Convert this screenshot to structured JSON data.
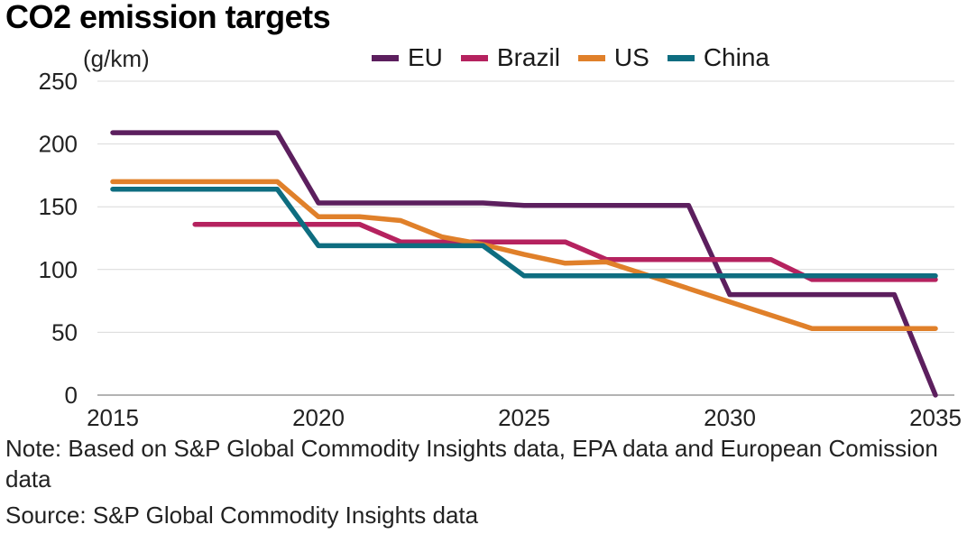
{
  "title": "CO2 emission targets",
  "unit_label": "(g/km)",
  "note": "Note: Based on S&P Global Commodity Insights data, EPA data and European Comission data",
  "source": "Source: S&P Global Commodity Insights data",
  "chart_data": {
    "type": "line",
    "title": "CO2 emission targets",
    "ylabel": "(g/km)",
    "xlabel": "",
    "xlim": [
      2015,
      2035
    ],
    "ylim": [
      0,
      250
    ],
    "x_ticks": [
      2015,
      2020,
      2025,
      2030,
      2035
    ],
    "y_ticks": [
      0,
      50,
      100,
      150,
      200,
      250
    ],
    "grid": "horizontal",
    "legend_position": "top",
    "series": [
      {
        "name": "EU",
        "color": "#5c1f5e",
        "points": [
          [
            2015,
            209
          ],
          [
            2019,
            209
          ],
          [
            2020,
            153
          ],
          [
            2024,
            153
          ],
          [
            2025,
            151
          ],
          [
            2029,
            151
          ],
          [
            2030,
            80
          ],
          [
            2034,
            80
          ],
          [
            2035,
            0
          ]
        ]
      },
      {
        "name": "Brazil",
        "color": "#b5225f",
        "points": [
          [
            2017,
            136
          ],
          [
            2021,
            136
          ],
          [
            2022,
            122
          ],
          [
            2026,
            122
          ],
          [
            2027,
            108
          ],
          [
            2031,
            108
          ],
          [
            2032,
            92
          ],
          [
            2035,
            92
          ]
        ]
      },
      {
        "name": "US",
        "color": "#e0802a",
        "points": [
          [
            2015,
            170
          ],
          [
            2019,
            170
          ],
          [
            2020,
            142
          ],
          [
            2021,
            142
          ],
          [
            2022,
            139
          ],
          [
            2023,
            126
          ],
          [
            2024,
            120
          ],
          [
            2025,
            112
          ],
          [
            2026,
            105
          ],
          [
            2027,
            106
          ],
          [
            2032,
            53
          ],
          [
            2035,
            53
          ]
        ]
      },
      {
        "name": "China",
        "color": "#0e6d80",
        "points": [
          [
            2015,
            164
          ],
          [
            2019,
            164
          ],
          [
            2020,
            119
          ],
          [
            2024,
            119
          ],
          [
            2025,
            95
          ],
          [
            2035,
            95
          ]
        ]
      }
    ]
  }
}
